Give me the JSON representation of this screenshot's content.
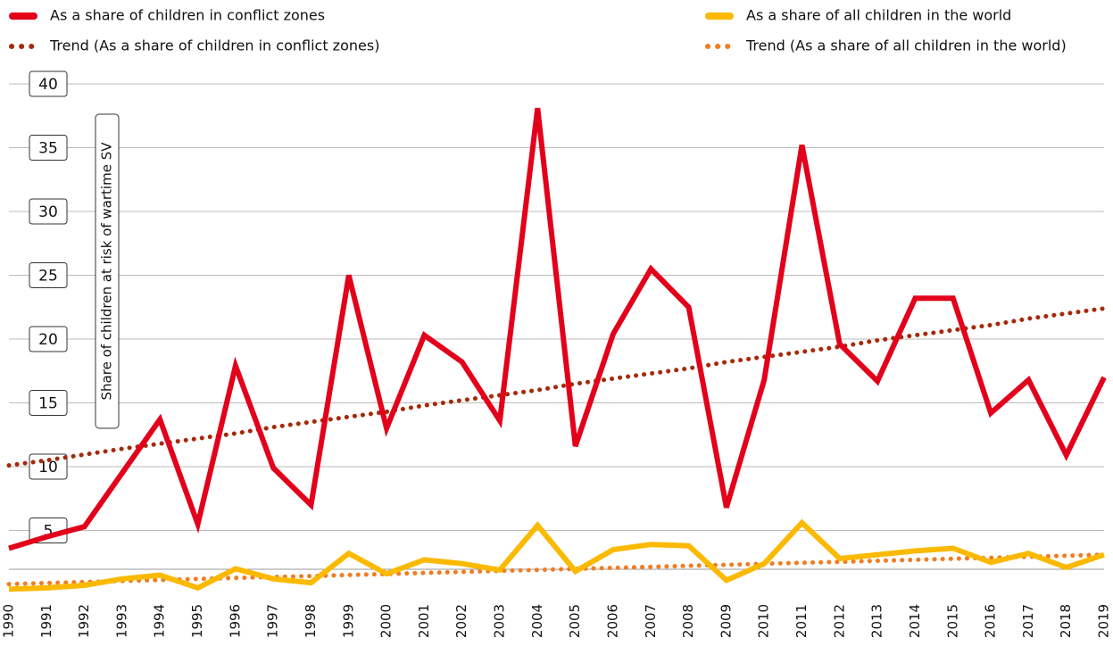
{
  "chart_data": {
    "type": "line",
    "y_label": "Share of children at risk of wartime SV",
    "categories": [
      "1990",
      "1991",
      "1992",
      "1993",
      "1994",
      "1995",
      "1996",
      "1997",
      "1998",
      "1999",
      "2000",
      "2001",
      "2002",
      "2003",
      "2004",
      "2005",
      "2006",
      "2007",
      "2008",
      "2009",
      "2010",
      "2011",
      "2012",
      "2013",
      "2014",
      "2015",
      "2016",
      "2017",
      "2018",
      "2019"
    ],
    "series": [
      {
        "name": "As a share of children in conflict zones",
        "color": "#e3001b",
        "style": "solid",
        "values": [
          3.6,
          4.5,
          5.3,
          9.5,
          13.7,
          5.5,
          17.9,
          9.9,
          7.0,
          25.0,
          13.0,
          20.3,
          18.2,
          13.6,
          38.1,
          11.6,
          20.4,
          25.5,
          22.5,
          6.8,
          16.8,
          35.2,
          19.6,
          16.7,
          23.2,
          23.2,
          14.2,
          16.8,
          10.9,
          17.0
        ]
      },
      {
        "name": "As a share of all children in the world",
        "color": "#fbb900",
        "style": "solid",
        "values": [
          0.4,
          0.5,
          0.7,
          1.2,
          1.5,
          0.5,
          2.0,
          1.2,
          0.9,
          3.2,
          1.6,
          2.7,
          2.4,
          1.9,
          5.4,
          1.8,
          3.5,
          3.9,
          3.8,
          1.1,
          2.4,
          5.6,
          2.8,
          3.1,
          3.4,
          3.6,
          2.5,
          3.2,
          2.1,
          3.1
        ]
      },
      {
        "name": "Trend (As a share of children in conflict zones)",
        "color": "#a52a0a",
        "style": "dotted",
        "values": [
          10.1,
          10.5,
          10.95,
          11.4,
          11.8,
          12.2,
          12.6,
          13.1,
          13.5,
          13.9,
          14.3,
          14.8,
          15.2,
          15.6,
          16.0,
          16.5,
          16.9,
          17.3,
          17.7,
          18.2,
          18.6,
          19.0,
          19.4,
          19.9,
          20.3,
          20.7,
          21.1,
          21.6,
          22.0,
          22.4
        ]
      },
      {
        "name": "Trend (As a share of all children in the world)",
        "color": "#f07d22",
        "style": "dotted",
        "values": [
          0.8,
          0.88,
          0.96,
          1.04,
          1.12,
          1.2,
          1.28,
          1.36,
          1.43,
          1.51,
          1.59,
          1.67,
          1.75,
          1.83,
          1.91,
          1.99,
          2.07,
          2.15,
          2.23,
          2.31,
          2.39,
          2.47,
          2.54,
          2.62,
          2.7,
          2.78,
          2.86,
          2.94,
          3.02,
          3.1
        ]
      }
    ],
    "ylim": [
      0,
      40
    ],
    "yticks": [
      5,
      10,
      15,
      20,
      25,
      30,
      35,
      40
    ],
    "grid": true
  }
}
